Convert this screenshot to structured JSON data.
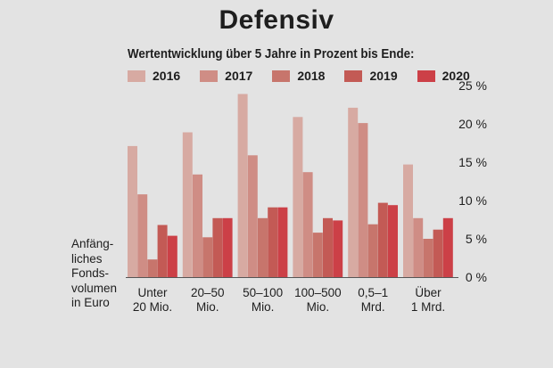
{
  "chart_data": {
    "type": "bar",
    "title": "Defensiv",
    "subtitle": "Wertentwicklung über 5 Jahre in Prozent bis Ende:",
    "xlabel_lines": [
      "Anfäng-",
      "liches",
      "Fonds-",
      "volumen",
      "in Euro"
    ],
    "categories": [
      "Unter 20 Mio.",
      "20-50 Mio.",
      "50-100 Mio.",
      "100-500 Mio.",
      "0,5-1 Mrd.",
      "Über 1 Mrd."
    ],
    "category_lines": [
      [
        "Unter",
        "20 Mio."
      ],
      [
        "20–50",
        "Mio."
      ],
      [
        "50–100",
        "Mio."
      ],
      [
        "100–500",
        "Mio."
      ],
      [
        "0,5–1",
        "Mrd."
      ],
      [
        "Über",
        "1 Mrd."
      ]
    ],
    "series": [
      {
        "name": "2016",
        "color": "#d7aaa2",
        "values": [
          17.1,
          18.9,
          23.9,
          20.9,
          22.1,
          14.7
        ]
      },
      {
        "name": "2017",
        "color": "#cf8d85",
        "values": [
          10.8,
          13.4,
          15.9,
          13.7,
          20.1,
          7.7
        ]
      },
      {
        "name": "2018",
        "color": "#c7756c",
        "values": [
          2.3,
          5.2,
          7.7,
          5.8,
          6.9,
          5.0
        ]
      },
      {
        "name": "2019",
        "color": "#c35a55",
        "values": [
          6.8,
          7.7,
          9.1,
          7.7,
          9.7,
          6.2
        ]
      },
      {
        "name": "2020",
        "color": "#cc4047",
        "values": [
          5.4,
          7.7,
          9.1,
          7.4,
          9.4,
          7.7
        ]
      }
    ],
    "ylim": [
      0,
      25
    ],
    "yticks": [
      0,
      5,
      10,
      15,
      20,
      25
    ],
    "ytick_labels": [
      "0 %",
      "5 %",
      "10 %",
      "15 %",
      "20 %",
      "25 %"
    ],
    "legend_position": "top",
    "grid": false
  }
}
